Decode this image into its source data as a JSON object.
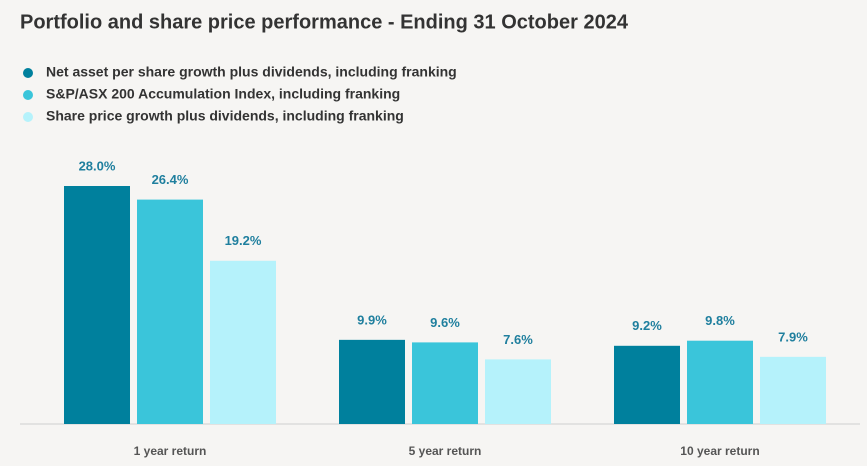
{
  "chart_data": {
    "type": "bar",
    "title": "Portfolio and share price performance - Ending 31 October 2024",
    "categories": [
      "1 year return",
      "5 year return",
      "10 year return"
    ],
    "series": [
      {
        "name": "Net asset per share growth plus dividends, including franking",
        "color": "#00809d",
        "values": [
          28.0,
          9.9,
          9.2
        ],
        "value_labels": [
          "28.0%",
          "9.9%",
          "9.2%"
        ]
      },
      {
        "name": "S&P/ASX 200 Accumulation Index, including franking",
        "color": "#3ac5da",
        "values": [
          26.4,
          9.6,
          9.8
        ],
        "value_labels": [
          "26.4%",
          "9.6%",
          "9.8%"
        ]
      },
      {
        "name": "Share price growth plus dividends, including franking",
        "color": "#b5f2fb",
        "values": [
          19.2,
          7.6,
          7.9
        ],
        "value_labels": [
          "19.2%",
          "7.6%",
          "7.9%"
        ]
      }
    ],
    "legend": "top-left"
  }
}
